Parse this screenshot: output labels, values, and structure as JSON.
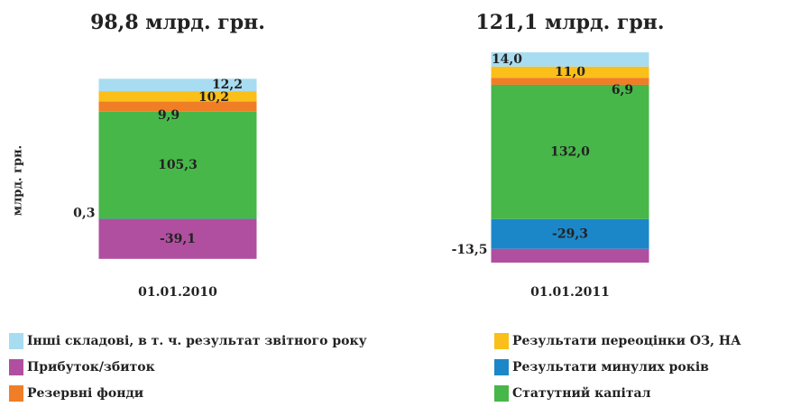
{
  "chart_data": {
    "type": "stacked_bar",
    "y_label": "млрд. грн.",
    "categories": [
      "01.01.2010",
      "01.01.2011"
    ],
    "annotations": [
      "98,8 млрд. грн.",
      "121,1 млрд. грн."
    ],
    "series": [
      {
        "name": "Інші складові, в т. ч. результат звітного року",
        "color": "#a8dcf0",
        "values": [
          12.2,
          14.0
        ],
        "value_labels": [
          "12,2",
          "14,0"
        ]
      },
      {
        "name": "Результати переоцінки ОЗ, НА",
        "color": "#fbbf1a",
        "values": [
          10.2,
          11.0
        ],
        "value_labels": [
          "10,2",
          "11,0"
        ]
      },
      {
        "name": "Прибуток/збиток",
        "color": "#b04fa0",
        "values": [
          -39.1,
          -13.5
        ],
        "value_labels": [
          "-39,1",
          "-13,5"
        ]
      },
      {
        "name": "Результати минулих років",
        "color": "#1b87c9",
        "values": [
          0.3,
          -29.3
        ],
        "value_labels": [
          "0,3",
          "-29,3"
        ]
      },
      {
        "name": "Резервні фонди",
        "color": "#f07e26",
        "values": [
          9.9,
          6.9
        ],
        "value_labels": [
          "9,9",
          "6,9"
        ]
      },
      {
        "name": "Статутний капітал",
        "color": "#47b749",
        "values": [
          105.3,
          132.0
        ],
        "value_labels": [
          "105,3",
          "132,0"
        ]
      }
    ]
  }
}
